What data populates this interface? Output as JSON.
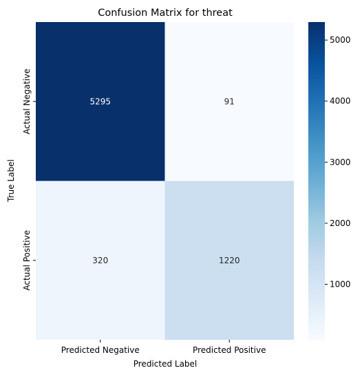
{
  "chart_data": {
    "type": "heatmap",
    "title": "Confusion Matrix for threat",
    "xlabel": "Predicted Label",
    "ylabel": "True Label",
    "x_categories": [
      "Predicted Negative",
      "Predicted Positive"
    ],
    "y_categories": [
      "Actual Negative",
      "Actual Positive"
    ],
    "values": [
      [
        5295,
        91
      ],
      [
        320,
        1220
      ]
    ],
    "colormap": "Blues",
    "color_range": [
      91,
      5295
    ],
    "colorbar_ticks": [
      1000,
      2000,
      3000,
      4000,
      5000
    ],
    "annotation_colors": {
      "dark": "#ffffff",
      "light": "#262626"
    }
  }
}
